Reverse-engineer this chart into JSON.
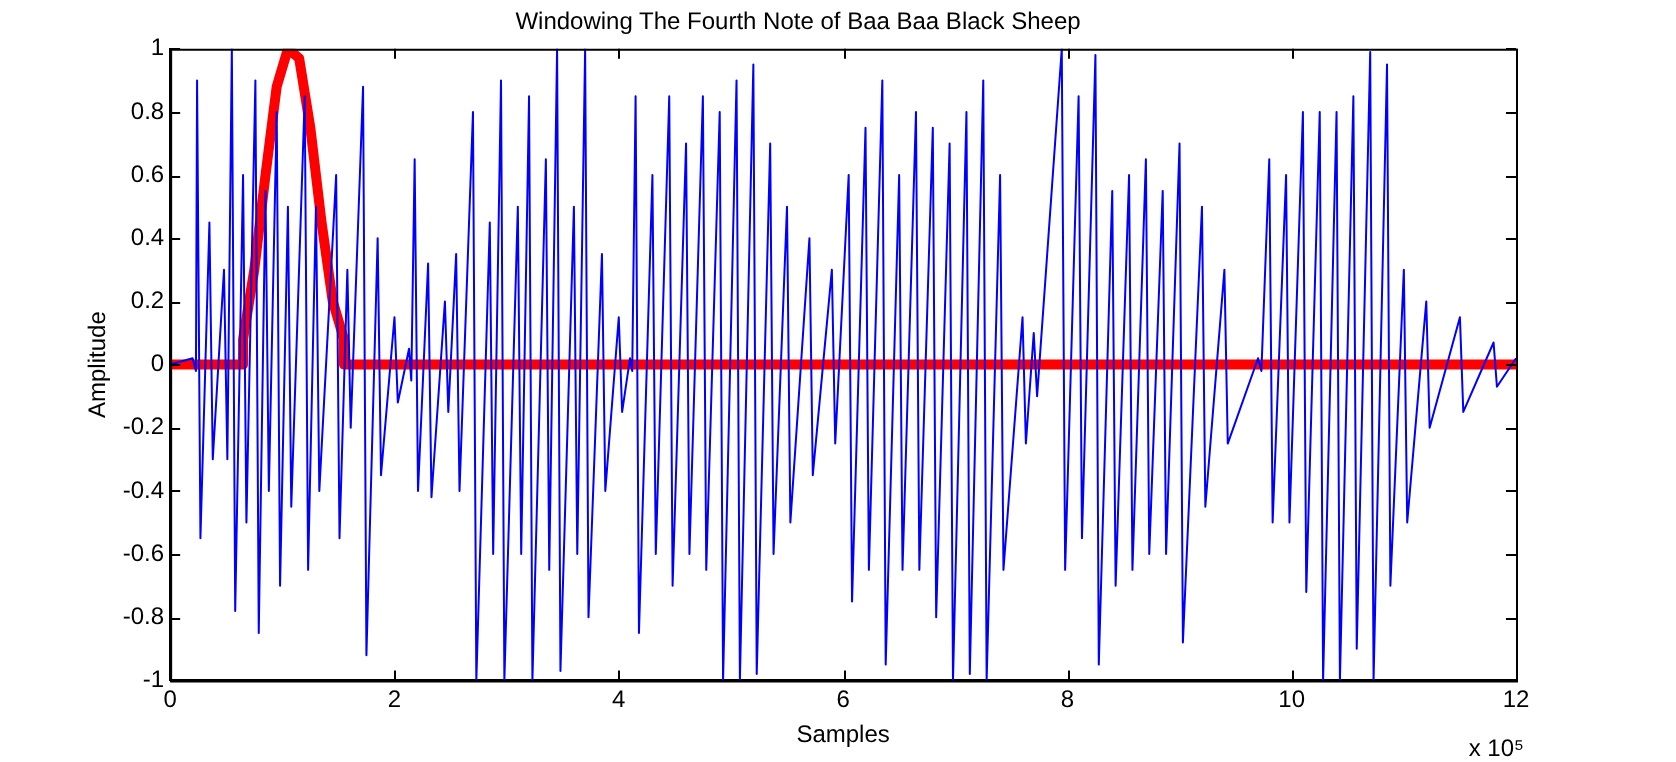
{
  "chart_data": {
    "type": "line",
    "title": "Windowing The Fourth Note of Baa Baa Black Sheep",
    "xlabel": "Samples",
    "ylabel": "Amplitude",
    "annotations": [
      "x 10⁵"
    ],
    "xlim": [
      0,
      12
    ],
    "xticks": [
      0,
      2,
      4,
      6,
      8,
      10,
      12
    ],
    "ylim": [
      -1,
      1
    ],
    "yticks": [
      -1,
      -0.8,
      -0.6,
      -0.4,
      -0.2,
      0,
      0.2,
      0.4,
      0.6,
      0.8,
      1
    ],
    "grid": false,
    "legend": false,
    "marker": "none",
    "line_style": "solid",
    "series": [
      {
        "color": "#0000ff",
        "x": [
          0,
          0.2,
          0.23,
          0.24,
          0.27,
          0.35,
          0.38,
          0.48,
          0.51,
          0.55,
          0.58,
          0.65,
          0.68,
          0.76,
          0.79,
          0.85,
          0.88,
          0.95,
          0.98,
          1.05,
          1.08,
          1.2,
          1.23,
          1.3,
          1.33,
          1.48,
          1.51,
          1.58,
          1.61,
          1.72,
          1.75,
          1.85,
          1.88,
          2.0,
          2.03,
          2.13,
          2.15,
          2.18,
          2.21,
          2.3,
          2.33,
          2.45,
          2.48,
          2.55,
          2.58,
          2.7,
          2.73,
          2.85,
          2.88,
          2.95,
          2.98,
          3.1,
          3.13,
          3.2,
          3.23,
          3.35,
          3.38,
          3.45,
          3.48,
          3.6,
          3.63,
          3.7,
          3.73,
          3.85,
          3.88,
          4.0,
          4.03,
          4.1,
          4.12,
          4.15,
          4.18,
          4.3,
          4.33,
          4.45,
          4.48,
          4.6,
          4.63,
          4.75,
          4.78,
          4.9,
          4.93,
          5.05,
          5.08,
          5.2,
          5.23,
          5.35,
          5.38,
          5.5,
          5.53,
          5.7,
          5.73,
          5.9,
          5.93,
          6.05,
          6.08,
          6.2,
          6.23,
          6.35,
          6.38,
          6.5,
          6.53,
          6.65,
          6.68,
          6.8,
          6.83,
          6.95,
          6.98,
          7.1,
          7.13,
          7.25,
          7.28,
          7.4,
          7.43,
          7.6,
          7.63,
          7.7,
          7.73,
          7.95,
          7.98,
          8.1,
          8.13,
          8.25,
          8.28,
          8.4,
          8.43,
          8.55,
          8.58,
          8.7,
          8.73,
          8.85,
          8.88,
          9.0,
          9.03,
          9.2,
          9.23,
          9.4,
          9.43,
          9.7,
          9.73,
          9.8,
          9.83,
          9.95,
          9.98,
          10.1,
          10.13,
          10.25,
          10.28,
          10.4,
          10.43,
          10.55,
          10.58,
          10.7,
          10.73,
          10.85,
          10.88,
          11.0,
          11.03,
          11.2,
          11.23,
          11.5,
          11.53,
          11.8,
          11.83,
          12
        ],
        "values": [
          0,
          0.02,
          -0.02,
          0.9,
          -0.55,
          0.45,
          -0.3,
          0.3,
          -0.3,
          1,
          -0.78,
          0.6,
          -0.5,
          0.9,
          -0.85,
          0.55,
          -0.4,
          0.8,
          -0.7,
          0.5,
          -0.45,
          0.85,
          -0.65,
          0.5,
          -0.4,
          0.6,
          -0.55,
          0.3,
          -0.2,
          0.88,
          -0.92,
          0.4,
          -0.35,
          0.15,
          -0.12,
          0.05,
          -0.05,
          0.65,
          -0.4,
          0.32,
          -0.42,
          0.2,
          -0.15,
          0.35,
          -0.4,
          0.8,
          -1,
          0.45,
          -0.6,
          0.9,
          -1,
          0.5,
          -0.6,
          0.85,
          -1,
          0.65,
          -0.65,
          1,
          -0.97,
          0.5,
          -0.6,
          1,
          -0.8,
          0.35,
          -0.4,
          0.15,
          -0.15,
          0.02,
          -0.02,
          0.85,
          -0.85,
          0.6,
          -0.6,
          0.85,
          -0.7,
          0.7,
          -0.6,
          0.85,
          -0.65,
          0.8,
          -1,
          0.9,
          -1,
          0.95,
          -0.98,
          0.7,
          -0.6,
          0.5,
          -0.5,
          0.4,
          -0.35,
          0.3,
          -0.25,
          0.6,
          -0.75,
          0.75,
          -0.65,
          0.9,
          -0.95,
          0.6,
          -0.65,
          0.8,
          -0.65,
          0.75,
          -0.8,
          0.7,
          -1,
          0.8,
          -0.98,
          0.9,
          -1,
          0.6,
          -0.65,
          0.15,
          -0.25,
          0.1,
          -0.1,
          1,
          -0.65,
          0.85,
          -0.55,
          0.98,
          -0.95,
          0.55,
          -0.7,
          0.6,
          -0.65,
          0.65,
          -0.6,
          0.55,
          -0.6,
          0.7,
          -0.88,
          0.5,
          -0.45,
          0.3,
          -0.25,
          0.02,
          -0.02,
          0.65,
          -0.5,
          0.6,
          -0.5,
          0.8,
          -0.72,
          0.8,
          -1,
          0.8,
          -1,
          0.85,
          -0.9,
          0.99,
          -1,
          0.95,
          -0.7,
          0.3,
          -0.5,
          0.2,
          -0.2,
          0.15,
          -0.15,
          0.07,
          -0.07,
          0.02
        ]
      },
      {
        "color": "#ff0000",
        "x": [
          0,
          0.65,
          0.65,
          0.75,
          0.85,
          0.95,
          1.05,
          1.15,
          1.25,
          1.35,
          1.45,
          1.55,
          1.55,
          12
        ],
        "values": [
          0,
          0,
          0.08,
          0.3,
          0.6,
          0.88,
          1,
          0.97,
          0.75,
          0.45,
          0.2,
          0.08,
          0,
          0
        ]
      }
    ]
  }
}
